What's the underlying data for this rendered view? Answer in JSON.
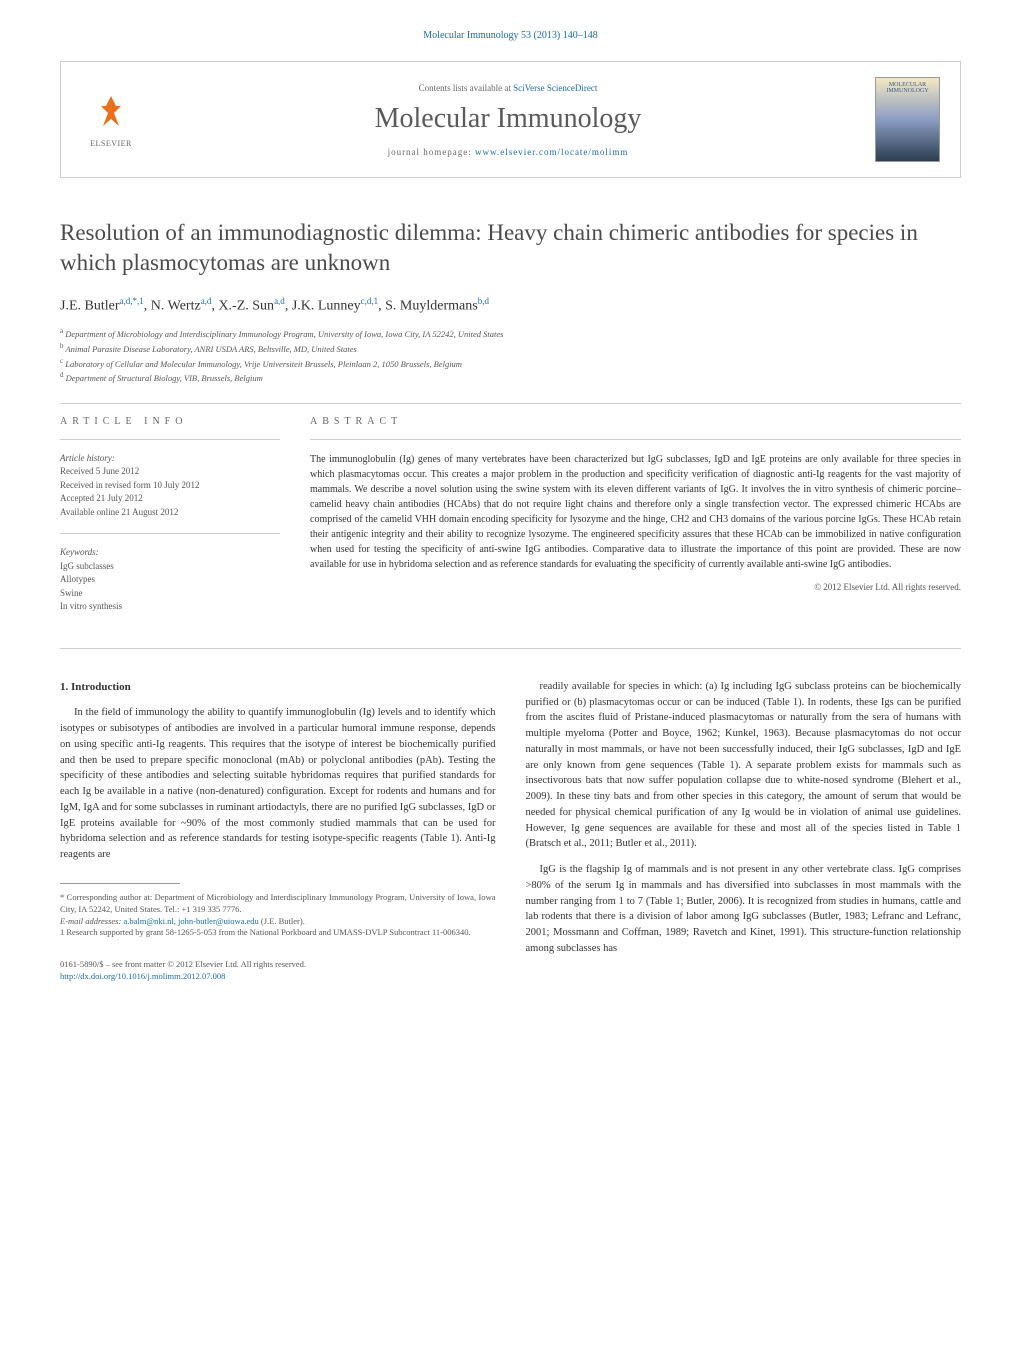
{
  "header": {
    "citation_link": "Molecular Immunology 53 (2013) 140–148",
    "publisher_name": "ELSEVIER",
    "contents_prefix": "Contents lists available at ",
    "contents_link": "SciVerse ScienceDirect",
    "journal_title": "Molecular Immunology",
    "homepage_prefix": "journal homepage: ",
    "homepage_url": "www.elsevier.com/locate/molimm",
    "cover_label": "MOLECULAR IMMUNOLOGY"
  },
  "article": {
    "title": "Resolution of an immunodiagnostic dilemma: Heavy chain chimeric antibodies for species in which plasmocytomas are unknown",
    "authors_html": "J.E. Butler<sup>a,d,*,1</sup>, N. Wertz<sup>a,d</sup>, X.-Z. Sun<sup>a,d</sup>, J.K. Lunney<sup>c,d,1</sup>, S. Muyldermans<sup>b,d</sup>",
    "affiliations": [
      "a Department of Microbiology and Interdisciplinary Immunology Program, University of Iowa, Iowa City, IA 52242, United States",
      "b Animal Parasite Disease Laboratory, ANRI USDA ARS, Beltsville, MD, United States",
      "c Laboratory of Cellular and Molecular Immunology, Vrije Universiteit Brussels, Pleinlaan 2, 1050 Brussels, Belgium",
      "d Department of Structural Biology, VIB, Brussels, Belgium"
    ]
  },
  "info": {
    "heading": "ARTICLE INFO",
    "history_label": "Article history:",
    "history": [
      "Received 5 June 2012",
      "Received in revised form 10 July 2012",
      "Accepted 21 July 2012",
      "Available online 21 August 2012"
    ],
    "keywords_label": "Keywords:",
    "keywords": [
      "IgG subclasses",
      "Allotypes",
      "Swine",
      "In vitro synthesis"
    ]
  },
  "abstract": {
    "heading": "ABSTRACT",
    "text": "The immunoglobulin (Ig) genes of many vertebrates have been characterized but IgG subclasses, IgD and IgE proteins are only available for three species in which plasmacytomas occur. This creates a major problem in the production and specificity verification of diagnostic anti-Ig reagents for the vast majority of mammals. We describe a novel solution using the swine system with its eleven different variants of IgG. It involves the in vitro synthesis of chimeric porcine–camelid heavy chain antibodies (HCAbs) that do not require light chains and therefore only a single transfection vector. The expressed chimeric HCAbs are comprised of the camelid VHH domain encoding specificity for lysozyme and the hinge, CH2 and CH3 domains of the various porcine IgGs. These HCAb retain their antigenic integrity and their ability to recognize lysozyme. The engineered specificity assures that these HCAb can be immobilized in native configuration when used for testing the specificity of anti-swine IgG antibodies. Comparative data to illustrate the importance of this point are provided. These are now available for use in hybridoma selection and as reference standards for evaluating the specificity of currently available anti-swine IgG antibodies.",
    "copyright": "© 2012 Elsevier Ltd. All rights reserved."
  },
  "body": {
    "section_number": "1.",
    "section_title": "Introduction",
    "col1_p1": "In the field of immunology the ability to quantify immunoglobulin (Ig) levels and to identify which isotypes or subisotypes of antibodies are involved in a particular humoral immune response, depends on using specific anti-Ig reagents. This requires that the isotype of interest be biochemically purified and then be used to prepare specific monoclonal (mAb) or polyclonal antibodies (pAb). Testing the specificity of these antibodies and selecting suitable hybridomas requires that purified standards for each Ig be available in a native (non-denatured) configuration. Except for rodents and humans and for IgM, IgA and for some subclasses in ruminant artiodactyls, there are no purified IgG subclasses, IgD or IgE proteins available for ~90% of the most commonly studied mammals that can be used for hybridoma selection and as reference standards for testing isotype-specific reagents (Table 1). Anti-Ig reagents are",
    "col2_p1": "readily available for species in which: (a) Ig including IgG subclass proteins can be biochemically purified or (b) plasmacytomas occur or can be induced (Table 1). In rodents, these Igs can be purified from the ascites fluid of Pristane-induced plasmacytomas or naturally from the sera of humans with multiple myeloma (Potter and Boyce, 1962; Kunkel, 1963). Because plasmacytomas do not occur naturally in most mammals, or have not been successfully induced, their IgG subclasses, IgD and IgE are only known from gene sequences (Table 1). A separate problem exists for mammals such as insectivorous bats that now suffer population collapse due to white-nosed syndrome (Blehert et al., 2009). In these tiny bats and from other species in this category, the amount of serum that would be needed for physical chemical purification of any Ig would be in violation of animal use guidelines. However, Ig gene sequences are available for these and most all of the species listed in Table 1 (Bratsch et al., 2011; Butler et al., 2011).",
    "col2_p2": "IgG is the flagship Ig of mammals and is not present in any other vertebrate class. IgG comprises >80% of the serum Ig in mammals and has diversified into subclasses in most mammals with the number ranging from 1 to 7 (Table 1; Butler, 2006). It is recognized from studies in humans, cattle and lab rodents that there is a division of labor among IgG subclasses (Butler, 1983; Lefranc and Lefranc, 2001; Mossmann and Coffman, 1989; Ravetch and Kinet, 1991). This structure-function relationship among subclasses has"
  },
  "footer": {
    "corresponding": "* Corresponding author at: Department of Microbiology and Interdisciplinary Immunology Program, University of Iowa, Iowa City, IA 52242, United States. Tel.: +1 319 335 7776.",
    "email_label": "E-mail addresses: ",
    "email1": "a.balm@nki.nl",
    "email2": "john-butler@uiowa.edu",
    "email_suffix": " (J.E. Butler).",
    "funding": "1 Research supported by grant 58-1265-5-053 from the National Porkboard and UMASS-DVLP Subcontract 11-006340.",
    "issn_line": "0161-5890/$ – see front matter © 2012 Elsevier Ltd. All rights reserved.",
    "doi": "http://dx.doi.org/10.1016/j.molimm.2012.07.008"
  }
}
